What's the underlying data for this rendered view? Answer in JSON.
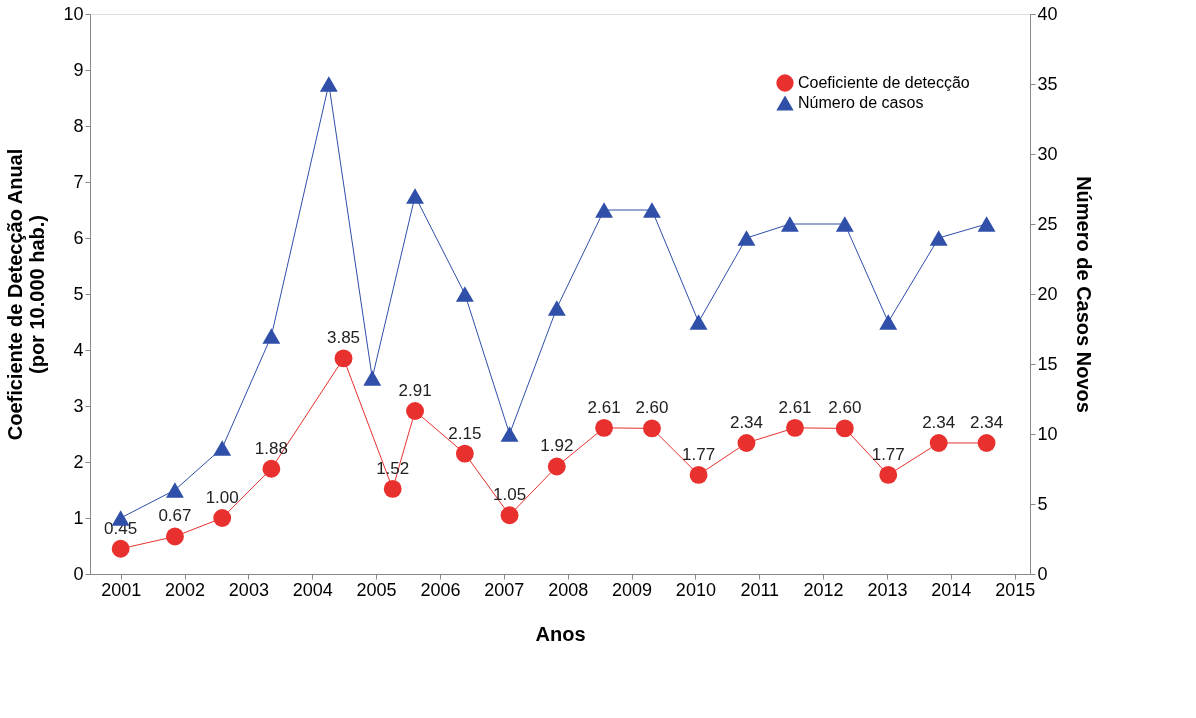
{
  "chart_data": {
    "type": "line",
    "xlabel": "Anos",
    "ylabel": "Coeficiente de Detecção Anual\n(por 10.000 hab.)",
    "y2label": "Número de Casos Novos",
    "xlim": [
      2000.52,
      2015.24
    ],
    "xticks": [
      2001,
      2002,
      2003,
      2004,
      2005,
      2006,
      2007,
      2008,
      2009,
      2010,
      2011,
      2012,
      2013,
      2014,
      2015
    ],
    "ylim": [
      0,
      10
    ],
    "yticks": [
      0,
      1,
      2,
      3,
      4,
      5,
      6,
      7,
      8,
      9,
      10
    ],
    "y2lim": [
      0,
      40
    ],
    "y2ticks": [
      0,
      5,
      10,
      15,
      20,
      25,
      30,
      35,
      40
    ],
    "grid": false,
    "legend": "top right",
    "series": [
      {
        "name": "Coeficiente de detecção",
        "color": "#e8312f",
        "marker": "circle",
        "data_labels": true,
        "x": [
          2001.0,
          2001.85,
          2002.59,
          2003.36,
          2004.49,
          2005.26,
          2005.61,
          2006.39,
          2007.09,
          2007.83,
          2008.57,
          2009.32,
          2010.05,
          2010.8,
          2011.56,
          2012.34,
          2013.02,
          2013.81,
          2014.56
        ],
        "values": [
          0.45,
          0.67,
          1.0,
          1.88,
          3.85,
          1.52,
          2.91,
          2.15,
          1.05,
          1.92,
          2.61,
          2.6,
          1.77,
          2.34,
          2.61,
          2.6,
          1.77,
          2.34,
          2.34
        ],
        "value_labels": [
          "0.45",
          "0.67",
          "1.00",
          "1.88",
          "3.85",
          "1.52",
          "2.91",
          "2.15",
          "1.05",
          "1.92",
          "2.61",
          "2.60",
          "1.77",
          "2.34",
          "2.61",
          "2.60",
          "1.77",
          "2.34",
          "2.34"
        ]
      },
      {
        "name": "Número de casos",
        "color": "#2f4fa8",
        "marker": "triangle",
        "axis": "y2",
        "x": [
          2001.0,
          2001.85,
          2002.59,
          2003.36,
          2004.26,
          2004.94,
          2005.61,
          2006.39,
          2007.09,
          2007.83,
          2008.57,
          2009.32,
          2010.05,
          2010.8,
          2011.48,
          2012.34,
          2013.02,
          2013.81,
          2014.56
        ],
        "values": [
          4,
          6,
          9,
          17,
          35,
          14,
          27,
          20,
          10,
          19,
          26,
          26,
          18,
          24,
          25,
          25,
          18,
          24,
          25
        ]
      }
    ]
  }
}
